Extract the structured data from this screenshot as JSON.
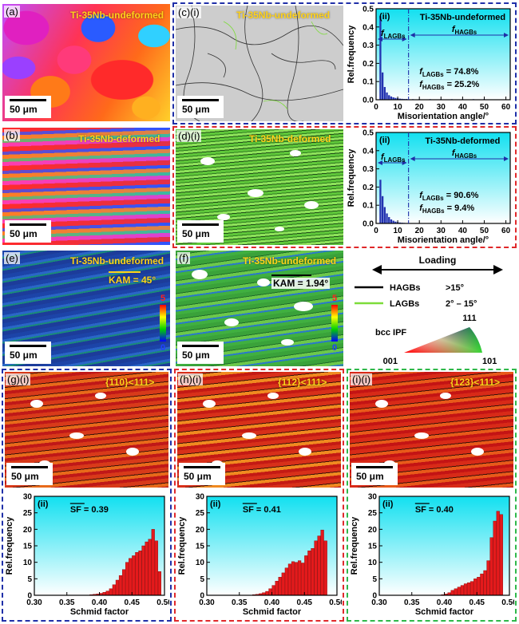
{
  "panels": {
    "a": {
      "label": "(a)",
      "title": "Ti-35Nb-undeformed",
      "scale": "50 μm"
    },
    "b": {
      "label": "(b)",
      "title": "Ti-35Nb-deformed",
      "scale": "50 μm"
    },
    "c": {
      "label": "(c)",
      "sub": "(i)",
      "title": "Ti-35Nb-undeformed",
      "scale": "50 μm"
    },
    "d": {
      "label": "(d)",
      "sub": "(i)",
      "title": "Ti-35Nb-deformed",
      "scale": "50 μm"
    },
    "e": {
      "label": "(e)",
      "title": "Ti-35Nb-undeformed",
      "kam": "KAM = 45°",
      "scale": "50 μm",
      "bar_max": "5",
      "bar_min": "0"
    },
    "f": {
      "label": "(f)",
      "title": "Ti-35Nb-undeformed",
      "kam": "KAM = 1.94°",
      "scale": "50 μm",
      "bar_max": "5",
      "bar_min": "0"
    },
    "g": {
      "label": "(g)",
      "sub": "(i)",
      "title": "{110}<111>",
      "scale": "50 μm"
    },
    "h": {
      "label": "(h)",
      "sub": "(i)",
      "title": "{112}<111>",
      "scale": "50 μm"
    },
    "i": {
      "label": "(i)",
      "sub": "(i)",
      "title": "{123}<111>",
      "scale": "50 μm"
    }
  },
  "legend": {
    "loading": "Loading",
    "hagb_name": "HAGBs",
    "hagb_range": ">15°",
    "lagb_name": "LAGBs",
    "lagb_range": "2° – 15°",
    "ipf_title": "bcc  IPF",
    "ipf_111": "111",
    "ipf_001": "001",
    "ipf_101": "101",
    "colors": {
      "hagb": "#000000",
      "lagb": "#7ddc3a"
    }
  },
  "chart_data": [
    {
      "id": "c-ii",
      "type": "bar",
      "panel": "(ii)",
      "title": "Ti-35Nb-undeformed",
      "xlabel": "Misorientation angle/°",
      "ylabel": "Rel.frequency",
      "xlim": [
        0,
        62
      ],
      "ylim": [
        0,
        0.5
      ],
      "xticks": [
        0,
        10,
        20,
        30,
        40,
        50,
        60
      ],
      "yticks": [
        0,
        0.1,
        0.2,
        0.3,
        0.4,
        0.5
      ],
      "x": [
        2,
        3,
        4,
        5,
        6,
        7,
        8,
        9,
        10,
        11,
        12,
        13,
        14,
        15,
        17,
        20,
        25,
        30,
        35,
        40,
        45,
        50,
        55,
        60
      ],
      "values": [
        0.46,
        0.15,
        0.07,
        0.04,
        0.025,
        0.018,
        0.013,
        0.01,
        0.008,
        0.006,
        0.005,
        0.004,
        0.004,
        0.003,
        0.003,
        0.003,
        0.003,
        0.003,
        0.003,
        0.003,
        0.003,
        0.003,
        0.002,
        0.002
      ],
      "divider": 15,
      "regions": [
        {
          "label": "f",
          "sub": "LAGBs"
        },
        {
          "label": "f",
          "sub": "HAGBs"
        }
      ],
      "annotations": [
        {
          "label": "f",
          "sub": "LAGBs",
          "text": " = 74.8%"
        },
        {
          "label": "f",
          "sub": "HAGBs",
          "text": " = 25.2%"
        }
      ],
      "colors": {
        "border": "#1f2fa8",
        "bar": "#2233b0",
        "bg_top": "#12e0f0",
        "bg_bottom": "#ffffff"
      }
    },
    {
      "id": "d-ii",
      "type": "bar",
      "panel": "(ii)",
      "title": "Ti-35Nb-deformed",
      "xlabel": "Misorientation angle/°",
      "ylabel": "Rel.frequency",
      "xlim": [
        0,
        62
      ],
      "ylim": [
        0,
        0.5
      ],
      "xticks": [
        0,
        10,
        20,
        30,
        40,
        50,
        60
      ],
      "yticks": [
        0,
        0.1,
        0.2,
        0.3,
        0.4,
        0.5
      ],
      "x": [
        2,
        3,
        4,
        5,
        6,
        7,
        8,
        9,
        10,
        11,
        12,
        13,
        14,
        15
      ],
      "values": [
        0.24,
        0.15,
        0.09,
        0.055,
        0.035,
        0.022,
        0.015,
        0.01,
        0.007,
        0.005,
        0.004,
        0.003,
        0.002,
        0.002
      ],
      "divider": 15,
      "regions": [
        {
          "label": "f",
          "sub": "LAGBs"
        },
        {
          "label": "f",
          "sub": "HAGBs"
        }
      ],
      "annotations": [
        {
          "label": "f",
          "sub": "LAGBs",
          "text": " = 90.6%"
        },
        {
          "label": "f",
          "sub": "HAGBs",
          "text": " = 9.4%"
        }
      ],
      "colors": {
        "border": "#e0282a",
        "bar": "#2233b0",
        "bg_top": "#12e0f0",
        "bg_bottom": "#ffffff"
      }
    },
    {
      "id": "g-ii",
      "type": "bar",
      "panel": "(ii)",
      "sf": "SF",
      "sf_value": " = 0.39",
      "xlabel": "Schmid factor",
      "ylabel": "Rel.frequency",
      "xlim": [
        0.3,
        0.5
      ],
      "ylim": [
        0,
        30
      ],
      "xticks": [
        0.3,
        0.35,
        0.4,
        0.45,
        0.5
      ],
      "yticks": [
        0,
        5,
        10,
        15,
        20,
        25,
        30
      ],
      "x": [
        0.3875,
        0.3925,
        0.3975,
        0.4025,
        0.4075,
        0.4125,
        0.4175,
        0.4225,
        0.4275,
        0.4325,
        0.4375,
        0.4425,
        0.4475,
        0.4525,
        0.4575,
        0.4625,
        0.4675,
        0.4725,
        0.4775,
        0.4825,
        0.4875,
        0.4925,
        0.4975
      ],
      "values": [
        0.2,
        0.3,
        0.4,
        0.6,
        0.9,
        1.3,
        2.0,
        3.2,
        4.6,
        6.0,
        7.8,
        10.0,
        11.2,
        12.0,
        13.0,
        13.5,
        15.0,
        16.2,
        17.0,
        20.0,
        16.5,
        7.2,
        0
      ],
      "colors": {
        "border": "#1f2fa8",
        "bar": "#e41a1c",
        "bg_top": "#12e0f0",
        "bg_bottom": "#ffffff"
      }
    },
    {
      "id": "h-ii",
      "type": "bar",
      "panel": "(ii)",
      "sf": "SF",
      "sf_value": " = 0.41",
      "xlabel": "Schmid factor",
      "ylabel": "Rel.frequency",
      "xlim": [
        0.3,
        0.5
      ],
      "ylim": [
        0,
        30
      ],
      "xticks": [
        0.3,
        0.35,
        0.4,
        0.45,
        0.5
      ],
      "yticks": [
        0,
        5,
        10,
        15,
        20,
        25,
        30
      ],
      "x": [
        0.3725,
        0.3775,
        0.3825,
        0.3875,
        0.3925,
        0.3975,
        0.4025,
        0.4075,
        0.4125,
        0.4175,
        0.4225,
        0.4275,
        0.4325,
        0.4375,
        0.4425,
        0.4475,
        0.4525,
        0.4575,
        0.4625,
        0.4675,
        0.4725,
        0.4775,
        0.4825,
        0.4875,
        0.4925,
        0.4975
      ],
      "values": [
        0.2,
        0.3,
        0.5,
        0.8,
        1.2,
        2.0,
        3.0,
        4.3,
        5.5,
        6.8,
        8.3,
        9.5,
        10.2,
        10.0,
        10.5,
        9.8,
        12.0,
        13.5,
        14.2,
        16.5,
        18.0,
        19.8,
        16.5,
        0,
        0,
        0
      ],
      "colors": {
        "border": "#e0282a",
        "bar": "#e41a1c",
        "bg_top": "#12e0f0",
        "bg_bottom": "#ffffff"
      }
    },
    {
      "id": "i-ii",
      "type": "bar",
      "panel": "(ii)",
      "sf": "SF",
      "sf_value": " = 0.40",
      "xlabel": "Schmid factor",
      "ylabel": "Rel.frequency",
      "xlim": [
        0.3,
        0.5
      ],
      "ylim": [
        0,
        30
      ],
      "xticks": [
        0.3,
        0.35,
        0.4,
        0.45,
        0.5
      ],
      "yticks": [
        0,
        5,
        10,
        15,
        20,
        25,
        30
      ],
      "x": [
        0.3975,
        0.4025,
        0.4075,
        0.4125,
        0.4175,
        0.4225,
        0.4275,
        0.4325,
        0.4375,
        0.4425,
        0.4475,
        0.4525,
        0.4575,
        0.4625,
        0.4675,
        0.4725,
        0.4775,
        0.4825,
        0.4875,
        0.4925,
        0.4975
      ],
      "values": [
        0.2,
        0.4,
        0.8,
        1.5,
        2.0,
        2.5,
        3.0,
        3.5,
        3.8,
        4.2,
        5.0,
        5.5,
        6.5,
        7.5,
        10.5,
        17.5,
        22.5,
        25.5,
        24.5,
        0,
        0
      ],
      "colors": {
        "border": "#2fb84a",
        "bar": "#e41a1c",
        "bg_top": "#12e0f0",
        "bg_bottom": "#ffffff"
      }
    }
  ]
}
